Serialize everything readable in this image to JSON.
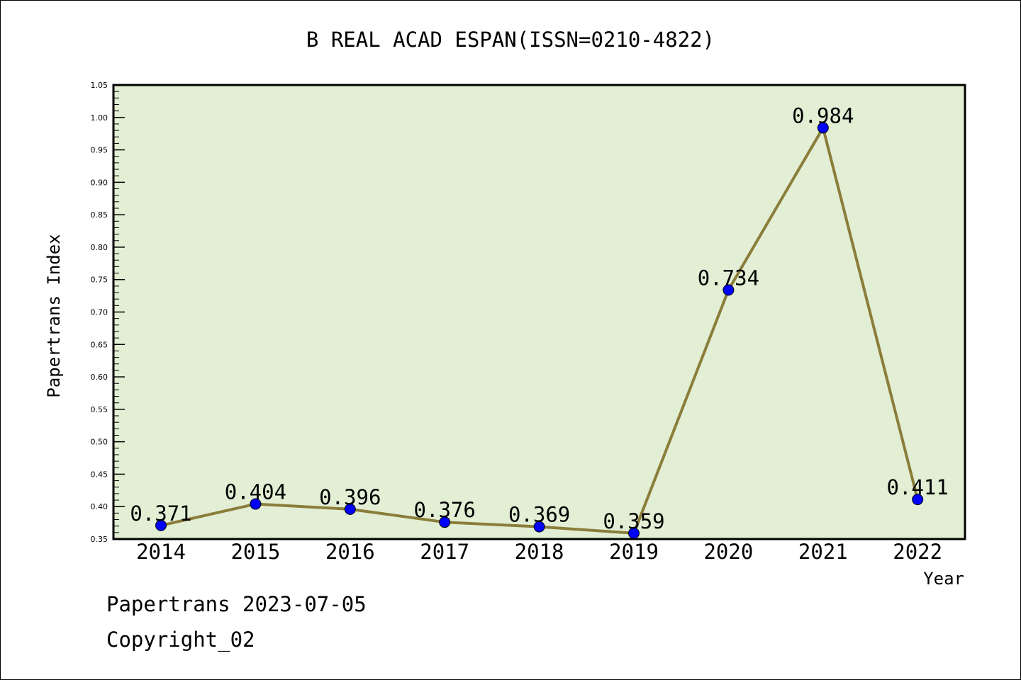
{
  "chart_data": {
    "type": "line",
    "title": "B REAL ACAD ESPAN(ISSN=0210-4822)",
    "xlabel": "Year",
    "ylabel": "Papertrans Index",
    "categories": [
      "2014",
      "2015",
      "2016",
      "2017",
      "2018",
      "2019",
      "2020",
      "2021",
      "2022"
    ],
    "values": [
      0.371,
      0.404,
      0.396,
      0.376,
      0.369,
      0.359,
      0.734,
      0.984,
      0.411
    ],
    "data_labels": [
      "0.371",
      "0.404",
      "0.396",
      "0.376",
      "0.369",
      "0.359",
      "0.734",
      "0.984",
      "0.411"
    ],
    "ylim": [
      0.35,
      1.05
    ],
    "yticks": [
      "0.35",
      "0.40",
      "0.45",
      "0.50",
      "0.55",
      "0.60",
      "0.65",
      "0.70",
      "0.75",
      "0.80",
      "0.85",
      "0.90",
      "0.95",
      "1.00",
      "1.05"
    ],
    "grid": false,
    "colors": {
      "plot_background": "#e2efd5",
      "line": "#8b7d3a",
      "marker": "#0000ff"
    }
  },
  "footer": {
    "source": "Papertrans 2023-07-05",
    "copyright": "Copyright_02"
  }
}
